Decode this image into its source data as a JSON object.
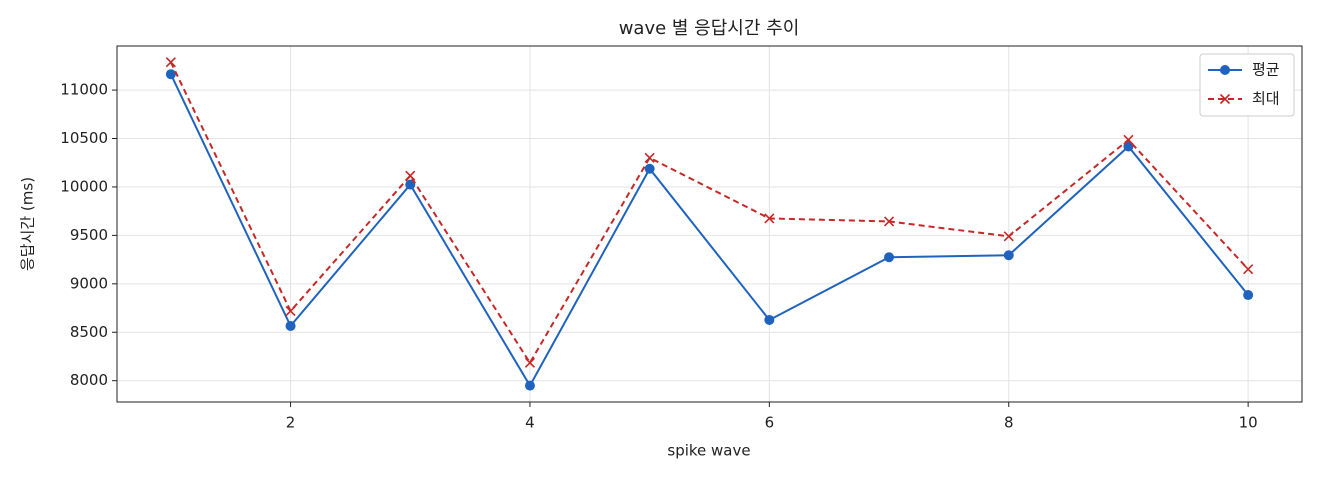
{
  "chart_data": {
    "type": "line",
    "title": "wave 별 응답시간 추이",
    "x_label": "spike wave",
    "y_label": "응답시간 (ms)",
    "x": [
      1,
      2,
      3,
      4,
      5,
      6,
      7,
      8,
      9,
      10
    ],
    "series": [
      {
        "name": "평균",
        "color": "#1f63bf",
        "marker": "circle",
        "dash": false,
        "values": [
          11164,
          8565,
          10024,
          7949,
          10188,
          8627,
          9274,
          9295,
          10418,
          8884
        ]
      },
      {
        "name": "최대",
        "color": "#c62828",
        "marker": "x",
        "dash": true,
        "values": [
          11288,
          8719,
          10116,
          8185,
          10301,
          9675,
          9644,
          9490,
          10486,
          9151
        ]
      }
    ],
    "xlim": [
      0.55,
      10.45
    ],
    "xticks": [
      2,
      4,
      6,
      8,
      10
    ],
    "ylim": [
      7780,
      11455
    ],
    "yticks": [
      8000,
      8500,
      9000,
      9500,
      10000,
      10500,
      11000
    ],
    "grid": true,
    "legend": "upper right"
  }
}
